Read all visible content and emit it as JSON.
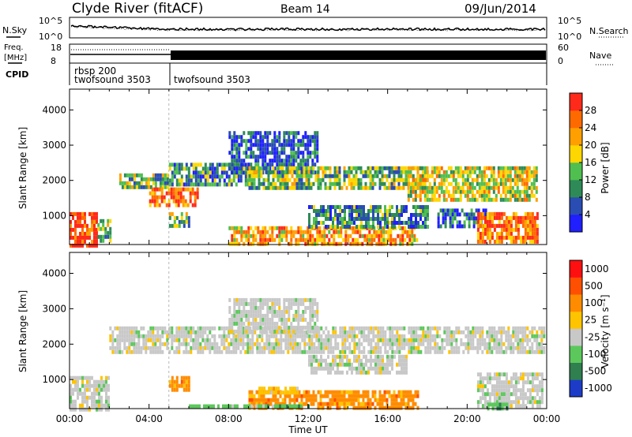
{
  "header": {
    "station": "Clyde River (fitACF)",
    "beam": "Beam 14",
    "date": "09/Jun/2014"
  },
  "noise_panel": {
    "left_label": "N.Sky",
    "right_label": "N.Search",
    "left_ticks": [
      "10^5",
      "10^0"
    ],
    "right_ticks": [
      "10^5",
      "10^0"
    ]
  },
  "freq_panel": {
    "left_label_1": "Freq.",
    "left_label_2": "[MHz]",
    "right_label": "Nave",
    "left_ticks": [
      "18",
      "8"
    ],
    "right_ticks": [
      "60",
      "0"
    ]
  },
  "cpid_panel": {
    "label": "CPID",
    "segments": [
      {
        "start_hour": 0,
        "end_hour": 5,
        "lines": [
          "rbsp 200",
          "twofsound 3503"
        ]
      },
      {
        "start_hour": 5,
        "end_hour": 24,
        "lines": [
          "twofsound 3503"
        ]
      }
    ]
  },
  "colors": {
    "power": [
      "#1f1fff",
      "#2a4db3",
      "#2e8b57",
      "#4fbf4f",
      "#ffd700",
      "#ff9f00",
      "#ff6a00",
      "#ff2a1a"
    ],
    "velocity": [
      "#1c3cc8",
      "#2f7f4f",
      "#5cc85c",
      "#c8c8c8",
      "#ffc400",
      "#ff8c00",
      "#ff4f00",
      "#ff1010"
    ]
  },
  "chart_data": [
    {
      "type": "heatmap",
      "name": "power",
      "ylabel": "Slant Range [km]",
      "ylim": [
        180,
        4590
      ],
      "yticks": [
        1000,
        2000,
        3000,
        4000
      ],
      "xlim": [
        0,
        24
      ],
      "colorbar": {
        "label": "Power [dB]",
        "range": [
          0,
          32
        ],
        "ticks": [
          4,
          8,
          12,
          16,
          20,
          24,
          28
        ]
      },
      "regions": [
        {
          "t0": 0.0,
          "t1": 1.4,
          "r0": 200,
          "r1": 1100,
          "level": 7
        },
        {
          "t0": 1.4,
          "t1": 2.0,
          "r0": 300,
          "r1": 900,
          "level": 3
        },
        {
          "t0": 2.5,
          "t1": 4.9,
          "r0": 1800,
          "r1": 2200,
          "level": 3
        },
        {
          "t0": 4.0,
          "t1": 6.5,
          "r0": 1300,
          "r1": 1800,
          "level": 6
        },
        {
          "t0": 5.0,
          "t1": 6.0,
          "r0": 700,
          "r1": 1100,
          "level": 3
        },
        {
          "t0": 5.0,
          "t1": 9.0,
          "r0": 1900,
          "r1": 2500,
          "level": 2
        },
        {
          "t0": 8.0,
          "t1": 12.5,
          "r0": 2200,
          "r1": 3400,
          "level": 1
        },
        {
          "t0": 8.0,
          "t1": 17.5,
          "r0": 200,
          "r1": 700,
          "level": 5
        },
        {
          "t0": 9.0,
          "t1": 18.0,
          "r0": 1800,
          "r1": 2400,
          "level": 3
        },
        {
          "t0": 12.0,
          "t1": 18.0,
          "r0": 700,
          "r1": 1300,
          "level": 2
        },
        {
          "t0": 17.0,
          "t1": 23.5,
          "r0": 1500,
          "r1": 2400,
          "level": 4
        },
        {
          "t0": 18.5,
          "t1": 21.0,
          "r0": 700,
          "r1": 1200,
          "level": 1
        },
        {
          "t0": 20.5,
          "t1": 23.5,
          "r0": 300,
          "r1": 1100,
          "level": 6
        }
      ]
    },
    {
      "type": "heatmap",
      "name": "velocity",
      "ylabel": "Slant Range [km]",
      "xlabel": "Time UT",
      "ylim": [
        180,
        4590
      ],
      "yticks": [
        1000,
        2000,
        3000,
        4000
      ],
      "xlim": [
        0,
        24
      ],
      "xticks": [
        "00:00",
        "04:00",
        "08:00",
        "12:00",
        "16:00",
        "20:00",
        "00:00"
      ],
      "colorbar": {
        "label": "Velocity [m s⁻¹]",
        "ticks": [
          "1000",
          "500",
          "100",
          "25",
          "-25",
          "-100",
          "-500",
          "-1000"
        ]
      },
      "regions": [
        {
          "t0": 0.0,
          "t1": 2.0,
          "r0": 200,
          "r1": 1100,
          "level": 3
        },
        {
          "t0": 2.0,
          "t1": 23.9,
          "r0": 1800,
          "r1": 2500,
          "level": 3
        },
        {
          "t0": 5.0,
          "t1": 6.0,
          "r0": 700,
          "r1": 1100,
          "level": 5
        },
        {
          "t0": 8.0,
          "t1": 12.5,
          "r0": 2300,
          "r1": 3300,
          "level": 3
        },
        {
          "t0": 9.0,
          "t1": 17.5,
          "r0": 250,
          "r1": 700,
          "level": 5
        },
        {
          "t0": 9.5,
          "t1": 11.5,
          "r0": 600,
          "r1": 800,
          "level": 4
        },
        {
          "t0": 12.0,
          "t1": 17.0,
          "r0": 1200,
          "r1": 1700,
          "level": 3
        },
        {
          "t0": 6.0,
          "t1": 12.0,
          "r0": 200,
          "r1": 300,
          "level": 2
        },
        {
          "t0": 20.5,
          "t1": 23.8,
          "r0": 250,
          "r1": 1200,
          "level": 3
        },
        {
          "t0": 21.0,
          "t1": 22.0,
          "r0": 200,
          "r1": 350,
          "level": 2
        }
      ]
    }
  ]
}
